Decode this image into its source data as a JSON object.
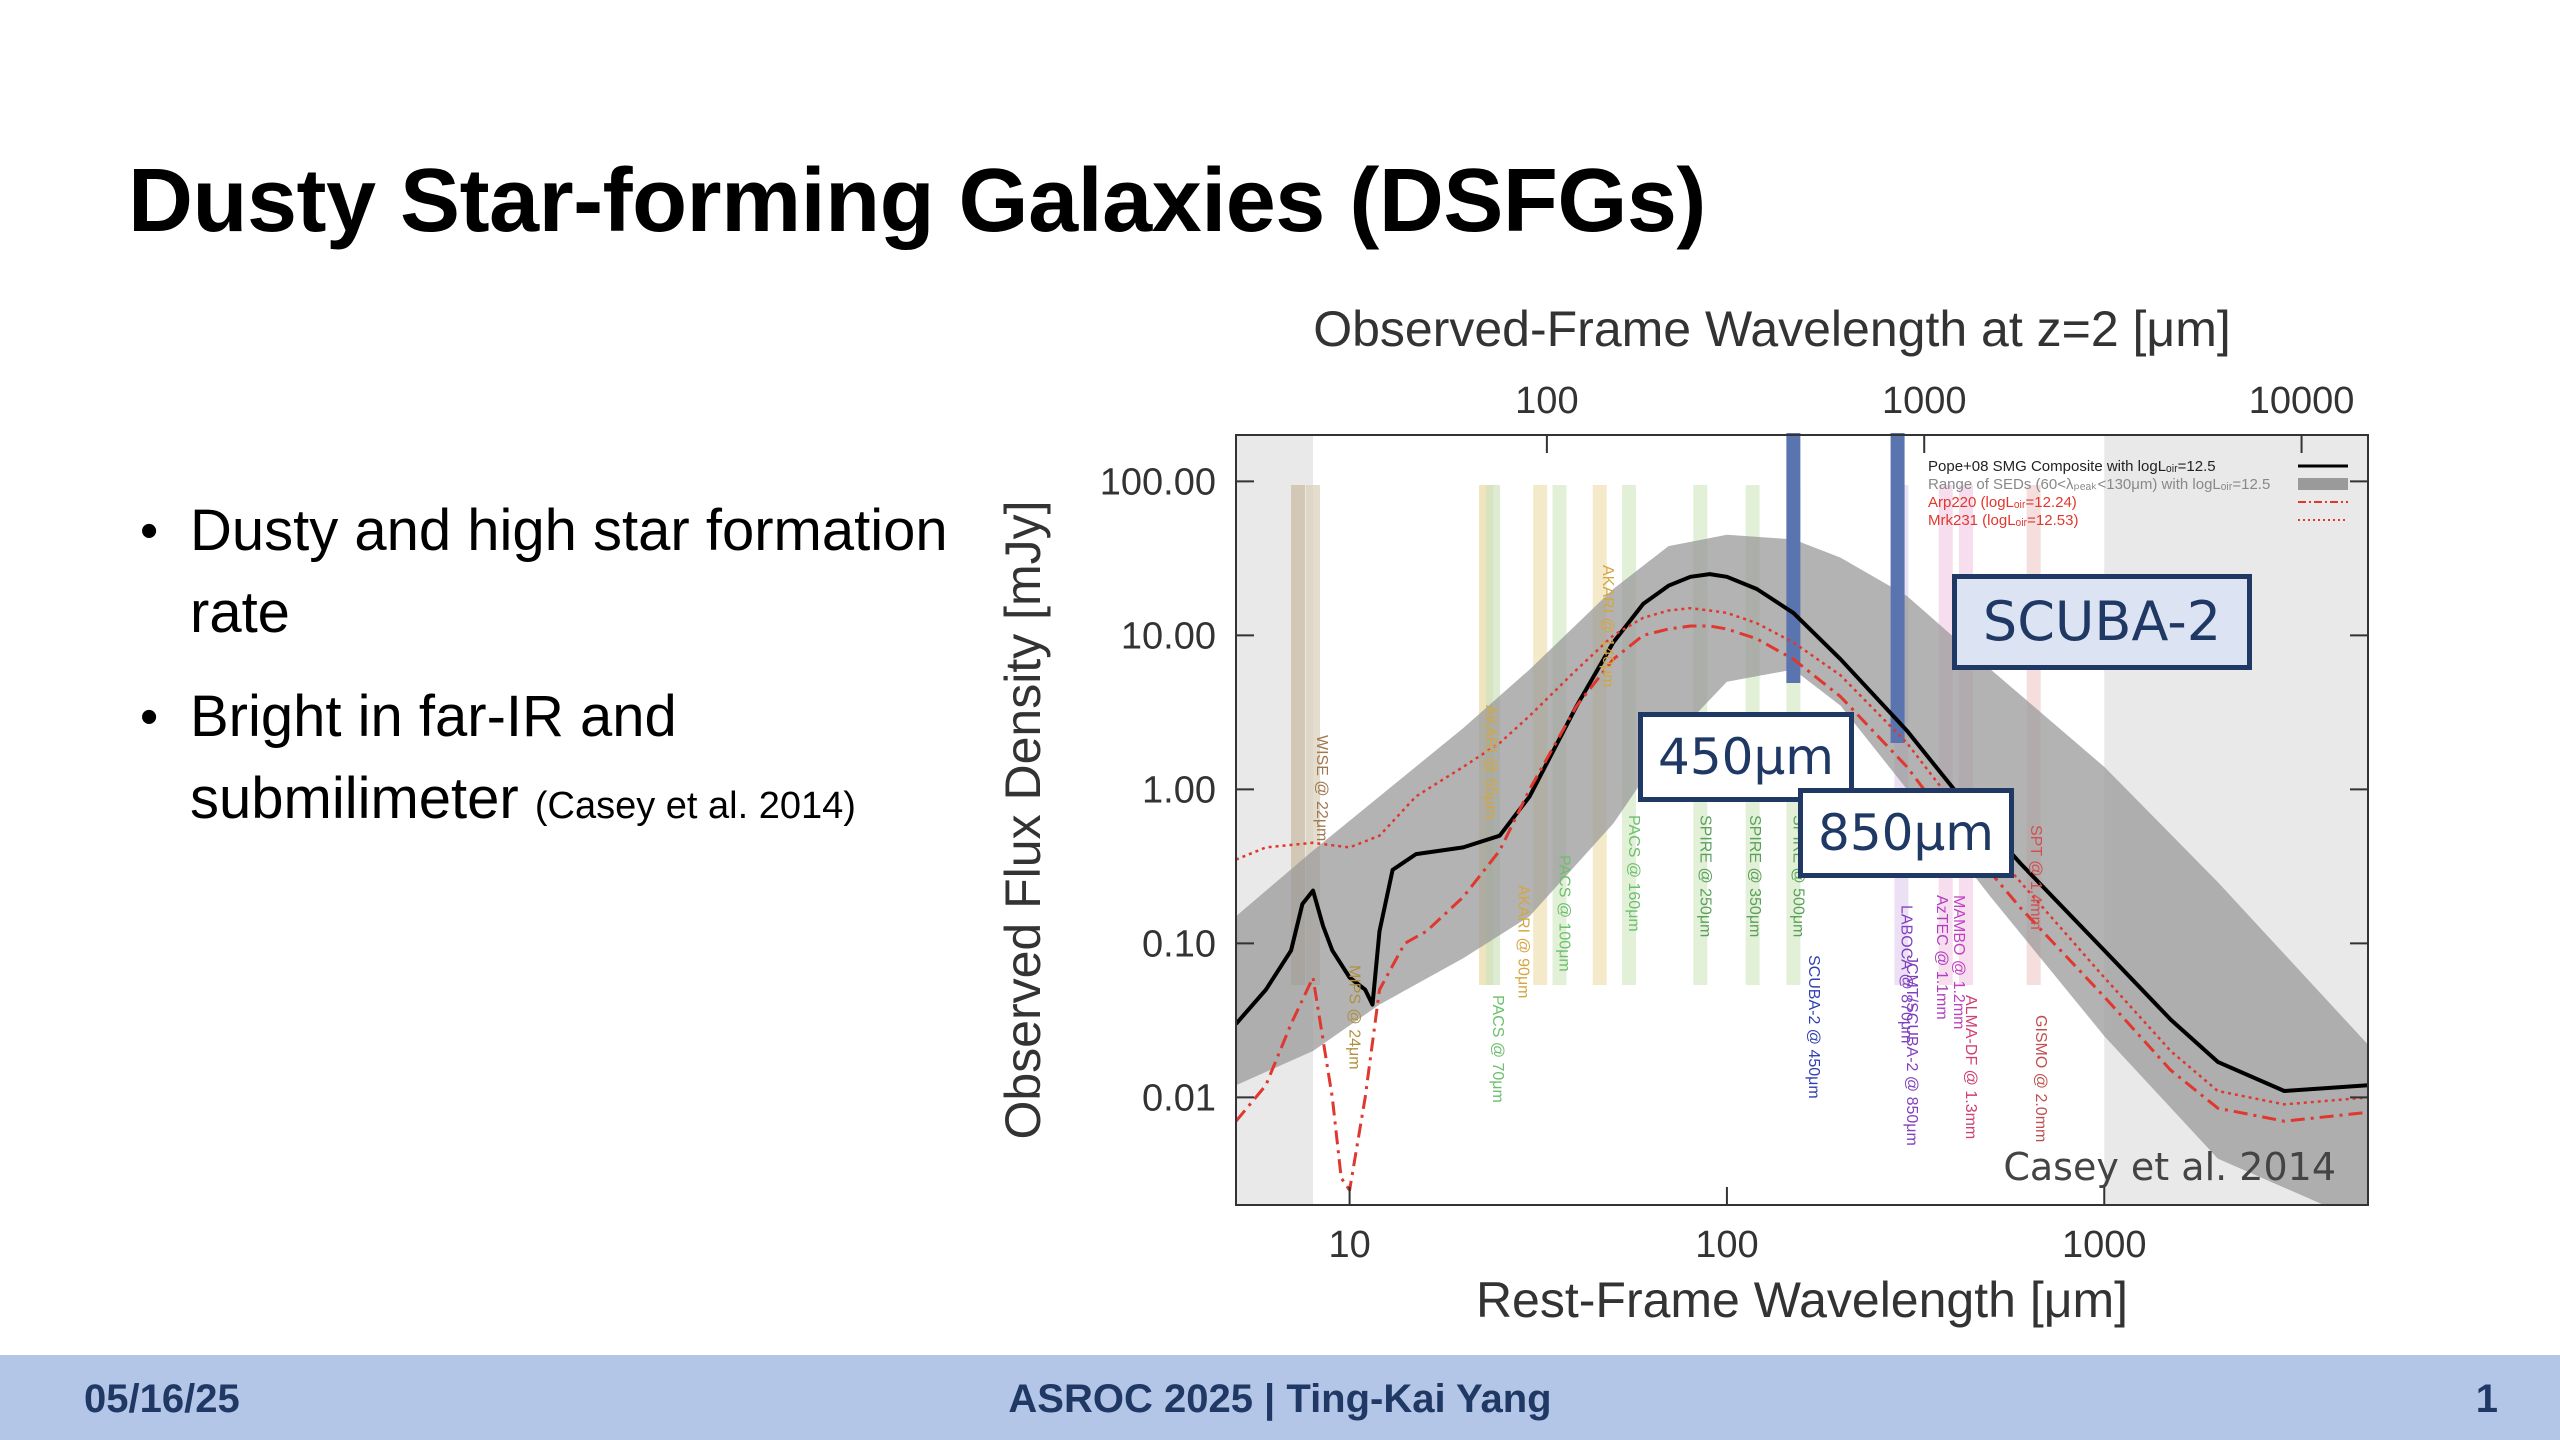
{
  "slide": {
    "title": "Dusty Star-forming Galaxies (DSFGs)",
    "bullets": [
      {
        "text": "Dusty and high star formation rate",
        "citation": ""
      },
      {
        "text": "Bright in far-IR and submilimeter",
        "citation": "(Casey et al. 2014)"
      }
    ],
    "bullet_glyph": "•"
  },
  "figure": {
    "callouts": {
      "scuba2": "SCUBA-2",
      "b450": "450μm",
      "b850": "850μm"
    },
    "credit": "Casey et al. 2014",
    "legend": [
      "Pope+08 SMG Composite with logLₒᵢᵣ=12.5",
      "Range of SEDs (60<λₚₑₐₖ<130μm) with logLₒᵢᵣ=12.5",
      "Arp220 (logLₒᵢᵣ=12.24)",
      "Mrk231 (logLₒᵢᵣ=12.53)"
    ],
    "filter_labels": [
      "WISE @ 22μm",
      "MIPS @ 24μm",
      "AKARI @ 65μm",
      "PACS @ 70μm",
      "AKARI @ 90μm",
      "PACS @ 100μm",
      "AKARI @ 140μm",
      "PACS @ 160μm",
      "SPIRE @ 250μm",
      "SPIRE @ 350μm",
      "SPIRE @ 500μm",
      "SCUBA-2 @ 450μm",
      "LABOCA @ 870μm",
      "JCMT/SCUBA-2 @ 850μm",
      "AzTEC @ 1.1mm",
      "MAMBO @ 1.2mm",
      "ALMA-DF @ 1.3mm",
      "SPT @ 1.4mm",
      "GISMO @ 2.0mm"
    ],
    "colors": {
      "band_bar": "#5a74b0",
      "callout_border": "#1f3864",
      "sed_black": "#000000",
      "arp220": "#e0372e",
      "range_fill": "#9a9a9a"
    }
  },
  "chart_data": {
    "type": "line",
    "title": "",
    "xlabel": "Rest-Frame Wavelength [μm]",
    "x2label": "Observed-Frame Wavelength at z=2 [μm]",
    "ylabel": "Observed Flux Density [mJy]",
    "xscale": "log",
    "yscale": "log",
    "xlim": [
      5,
      5000
    ],
    "ylim": [
      0.002,
      200
    ],
    "xticks": [
      {
        "value": 10,
        "label": "10"
      },
      {
        "value": 100,
        "label": "100"
      },
      {
        "value": 1000,
        "label": "1000"
      }
    ],
    "x2ticks": [
      {
        "value": 100,
        "label": "100"
      },
      {
        "value": 1000,
        "label": "1000"
      },
      {
        "value": 10000,
        "label": "10000"
      }
    ],
    "yticks": [
      {
        "value": 100,
        "label": "100.00"
      },
      {
        "value": 10,
        "label": "10.00"
      },
      {
        "value": 1,
        "label": "1.00"
      },
      {
        "value": 0.1,
        "label": "0.10"
      },
      {
        "value": 0.01,
        "label": "0.01"
      }
    ],
    "band_markers": [
      {
        "label": "450μm",
        "wavelength_obs": 450
      },
      {
        "label": "850μm",
        "wavelength_obs": 850
      }
    ],
    "series": [
      {
        "name": "Pope+08 SMG Composite with logLIR=12.5",
        "style": "solid",
        "x": [
          5,
          6,
          7,
          7.5,
          8,
          8.5,
          9,
          10,
          11,
          11.5,
          12,
          13,
          15,
          20,
          25,
          30,
          40,
          50,
          60,
          70,
          80,
          90,
          100,
          120,
          150,
          200,
          300,
          400,
          600,
          1000,
          1500,
          2000,
          3000,
          5000
        ],
        "y": [
          0.03,
          0.05,
          0.09,
          0.18,
          0.22,
          0.13,
          0.09,
          0.06,
          0.05,
          0.04,
          0.12,
          0.3,
          0.38,
          0.42,
          0.5,
          0.9,
          3.5,
          9,
          16,
          21,
          24,
          25,
          24,
          20,
          14,
          7,
          2.4,
          1.0,
          0.33,
          0.09,
          0.032,
          0.017,
          0.011,
          0.012
        ]
      },
      {
        "name": "Arp220 (logLIR=12.24)",
        "style": "dashdot",
        "x": [
          5,
          6,
          7,
          8,
          9,
          9.5,
          10,
          11,
          12,
          14,
          16,
          20,
          25,
          30,
          40,
          50,
          60,
          70,
          80,
          90,
          100,
          120,
          150,
          200,
          300,
          400,
          600,
          1000,
          1500,
          2000,
          3000,
          5000
        ],
        "y": [
          0.007,
          0.012,
          0.03,
          0.06,
          0.01,
          0.003,
          0.0025,
          0.01,
          0.05,
          0.1,
          0.12,
          0.2,
          0.4,
          1.0,
          3.5,
          7,
          10,
          11,
          11.5,
          11.5,
          11,
          9.5,
          7,
          4,
          1.4,
          0.55,
          0.17,
          0.045,
          0.015,
          0.0085,
          0.007,
          0.008
        ]
      },
      {
        "name": "Mrk231 (logLIR=12.53)",
        "style": "dotted",
        "x": [
          5,
          6,
          8,
          10,
          12,
          15,
          20,
          25,
          30,
          40,
          50,
          60,
          70,
          80,
          90,
          100,
          120,
          150,
          200,
          300,
          400,
          600,
          1000,
          1500,
          2000,
          3000,
          5000
        ],
        "y": [
          0.35,
          0.42,
          0.45,
          0.42,
          0.5,
          0.9,
          1.4,
          2.0,
          3.0,
          6,
          10,
          13,
          14.5,
          15,
          14.5,
          14,
          12,
          9,
          5.5,
          2.0,
          0.8,
          0.25,
          0.06,
          0.02,
          0.011,
          0.009,
          0.01
        ]
      }
    ],
    "range_band": {
      "name": "Range of SEDs (60<λpeak<130μm) with logLIR=12.5",
      "x": [
        5,
        8,
        12,
        20,
        30,
        50,
        70,
        100,
        150,
        200,
        300,
        500,
        1000,
        2000,
        5000
      ],
      "upper": [
        0.15,
        0.4,
        0.9,
        2.5,
        6,
        20,
        38,
        45,
        42,
        32,
        18,
        6,
        1.4,
        0.25,
        0.022
      ],
      "lower": [
        0.012,
        0.02,
        0.04,
        0.08,
        0.15,
        0.6,
        2.0,
        5,
        6,
        3.5,
        1.0,
        0.2,
        0.025,
        0.004,
        0.0015
      ]
    },
    "legend_position": "top-right",
    "grid": false
  },
  "footer": {
    "date": "05/16/25",
    "center": "ASROC 2025 | Ting-Kai Yang",
    "page": "1"
  }
}
